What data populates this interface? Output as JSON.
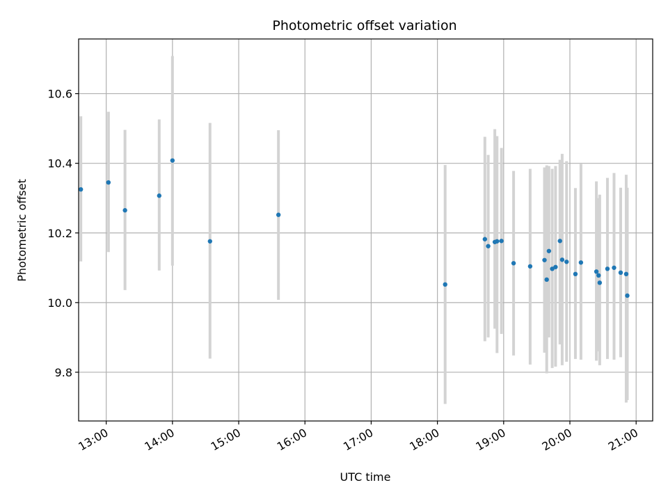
{
  "chart_data": {
    "type": "scatter",
    "title": "Photometric offset variation",
    "xlabel": "UTC time",
    "ylabel": "Photometric offset",
    "x_axis_type": "time",
    "xlim": [
      "12:35",
      "21:15"
    ],
    "ylim": [
      9.66,
      10.757
    ],
    "x_ticks": [
      "13:00",
      "14:00",
      "15:00",
      "16:00",
      "17:00",
      "18:00",
      "19:00",
      "20:00",
      "21:00"
    ],
    "y_ticks": [
      "9.8",
      "10.0",
      "10.2",
      "10.4",
      "10.6"
    ],
    "grid": true,
    "marker_color": "#1f77b4",
    "errorbar_color": "#d3d3d3",
    "series": [
      {
        "points": [
          {
            "x": "12:37",
            "y": 10.325,
            "ylow": 10.118,
            "yhigh": 10.535
          },
          {
            "x": "13:02",
            "y": 10.345,
            "ylow": 10.145,
            "yhigh": 10.548
          },
          {
            "x": "13:17",
            "y": 10.265,
            "ylow": 10.036,
            "yhigh": 10.496
          },
          {
            "x": "13:48",
            "y": 10.307,
            "ylow": 10.092,
            "yhigh": 10.526
          },
          {
            "x": "14:00",
            "y": 10.408,
            "ylow": 10.106,
            "yhigh": 10.708
          },
          {
            "x": "14:34",
            "y": 10.176,
            "ylow": 9.839,
            "yhigh": 10.516
          },
          {
            "x": "15:36",
            "y": 10.252,
            "ylow": 10.008,
            "yhigh": 10.495
          },
          {
            "x": "18:07",
            "y": 10.052,
            "ylow": 9.709,
            "yhigh": 10.395
          },
          {
            "x": "18:43",
            "y": 10.182,
            "ylow": 9.889,
            "yhigh": 10.476
          },
          {
            "x": "18:46",
            "y": 10.162,
            "ylow": 9.9,
            "yhigh": 10.424
          },
          {
            "x": "18:52",
            "y": 10.174,
            "ylow": 9.925,
            "yhigh": 10.498
          },
          {
            "x": "18:54",
            "y": 10.176,
            "ylow": 9.855,
            "yhigh": 10.478
          },
          {
            "x": "18:58",
            "y": 10.177,
            "ylow": 9.91,
            "yhigh": 10.444
          },
          {
            "x": "19:09",
            "y": 10.113,
            "ylow": 9.848,
            "yhigh": 10.378
          },
          {
            "x": "19:24",
            "y": 10.104,
            "ylow": 9.822,
            "yhigh": 10.384
          },
          {
            "x": "19:37",
            "y": 10.122,
            "ylow": 9.856,
            "yhigh": 10.388
          },
          {
            "x": "19:39",
            "y": 10.066,
            "ylow": 9.797,
            "yhigh": 10.394
          },
          {
            "x": "19:41",
            "y": 10.148,
            "ylow": 9.9,
            "yhigh": 10.392
          },
          {
            "x": "19:44",
            "y": 10.097,
            "ylow": 9.812,
            "yhigh": 10.384
          },
          {
            "x": "19:47",
            "y": 10.102,
            "ylow": 9.816,
            "yhigh": 10.392
          },
          {
            "x": "19:51",
            "y": 10.177,
            "ylow": 9.88,
            "yhigh": 10.41
          },
          {
            "x": "19:53",
            "y": 10.123,
            "ylow": 9.82,
            "yhigh": 10.427
          },
          {
            "x": "19:57",
            "y": 10.117,
            "ylow": 9.83,
            "yhigh": 10.406
          },
          {
            "x": "20:05",
            "y": 10.082,
            "ylow": 9.838,
            "yhigh": 10.329
          },
          {
            "x": "20:10",
            "y": 10.115,
            "ylow": 9.836,
            "yhigh": 10.398
          },
          {
            "x": "20:24",
            "y": 10.089,
            "ylow": 9.833,
            "yhigh": 10.348
          },
          {
            "x": "20:26",
            "y": 10.078,
            "ylow": 9.86,
            "yhigh": 10.3
          },
          {
            "x": "20:27",
            "y": 10.057,
            "ylow": 9.82,
            "yhigh": 10.31
          },
          {
            "x": "20:34",
            "y": 10.097,
            "ylow": 9.838,
            "yhigh": 10.358
          },
          {
            "x": "20:40",
            "y": 10.1,
            "ylow": 9.836,
            "yhigh": 10.372
          },
          {
            "x": "20:46",
            "y": 10.086,
            "ylow": 9.843,
            "yhigh": 10.33
          },
          {
            "x": "20:51",
            "y": 10.082,
            "ylow": 9.713,
            "yhigh": 10.367
          },
          {
            "x": "20:52",
            "y": 10.02,
            "ylow": 9.72,
            "yhigh": 10.33
          }
        ]
      }
    ]
  }
}
